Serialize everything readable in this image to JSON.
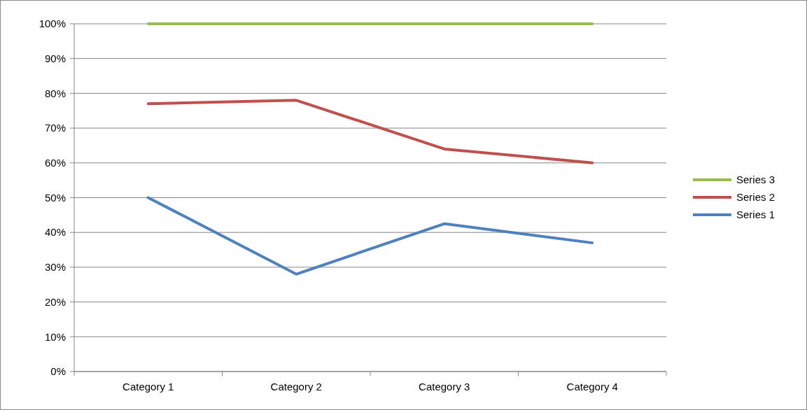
{
  "chart_data": {
    "type": "line",
    "categories": [
      "Category 1",
      "Category 2",
      "Category 3",
      "Category 4"
    ],
    "series": [
      {
        "name": "Series 1",
        "color": "#4f81bd",
        "values": [
          50,
          28,
          42.5,
          37
        ]
      },
      {
        "name": "Series 2",
        "color": "#c0504d",
        "values": [
          77,
          78,
          64,
          60
        ]
      },
      {
        "name": "Series 3",
        "color": "#9bbb59",
        "values": [
          100,
          100,
          100,
          100
        ]
      }
    ],
    "ylim": [
      0,
      100
    ],
    "yticks": [
      {
        "value": 0,
        "label": "0%"
      },
      {
        "value": 10,
        "label": "10%"
      },
      {
        "value": 20,
        "label": "20%"
      },
      {
        "value": 30,
        "label": "30%"
      },
      {
        "value": 40,
        "label": "40%"
      },
      {
        "value": 50,
        "label": "50%"
      },
      {
        "value": 60,
        "label": "60%"
      },
      {
        "value": 70,
        "label": "70%"
      },
      {
        "value": 80,
        "label": "80%"
      },
      {
        "value": 90,
        "label": "90%"
      },
      {
        "value": 100,
        "label": "100%"
      }
    ],
    "grid": "y",
    "legend": "right",
    "marker": "none",
    "line_style": "solid"
  }
}
